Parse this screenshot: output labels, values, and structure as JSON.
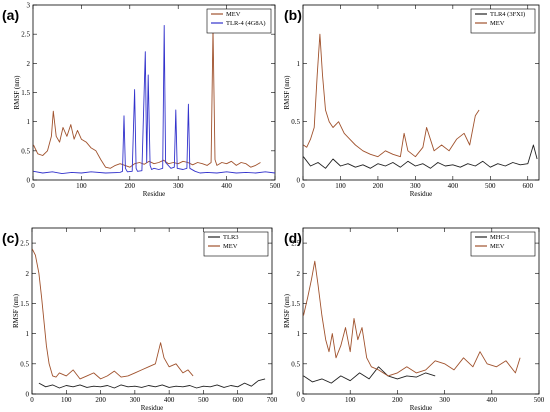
{
  "chart_data": [
    {
      "panel": "(a)",
      "type": "line",
      "xlabel": "Residue",
      "ylabel": "RMSF (nm)",
      "xlim": [
        0,
        500
      ],
      "ylim": [
        0,
        3
      ],
      "xticks": [
        0,
        100,
        200,
        300,
        400,
        500
      ],
      "yticks": [
        0,
        0.5,
        1,
        1.5,
        2,
        2.5,
        3
      ],
      "ytick_labels": [
        "0",
        "0.5",
        "1",
        "1.5",
        "2",
        "2.5",
        "3"
      ],
      "legend": {
        "position": "top-right"
      },
      "series": [
        {
          "name": "MEV",
          "color": "#a0522d",
          "x": [
            1,
            10,
            20,
            30,
            38,
            42,
            48,
            55,
            62,
            70,
            78,
            85,
            92,
            100,
            110,
            120,
            130,
            140,
            150,
            160,
            170,
            180,
            190,
            200,
            210,
            220,
            230,
            240,
            250,
            260,
            270,
            280,
            290,
            300,
            310,
            320,
            330,
            340,
            350,
            360,
            368,
            372,
            376,
            380,
            390,
            400,
            410,
            420,
            430,
            440,
            450,
            460,
            470
          ],
          "y": [
            0.6,
            0.45,
            0.42,
            0.5,
            0.75,
            1.18,
            0.75,
            0.65,
            0.9,
            0.75,
            0.95,
            0.7,
            0.85,
            0.7,
            0.65,
            0.55,
            0.5,
            0.35,
            0.22,
            0.2,
            0.25,
            0.28,
            0.25,
            0.22,
            0.28,
            0.3,
            0.27,
            0.32,
            0.28,
            0.3,
            0.34,
            0.28,
            0.3,
            0.28,
            0.32,
            0.3,
            0.26,
            0.3,
            0.28,
            0.25,
            0.3,
            2.6,
            0.35,
            0.25,
            0.3,
            0.28,
            0.32,
            0.25,
            0.3,
            0.28,
            0.22,
            0.25,
            0.3
          ]
        },
        {
          "name": "TLR-4 (4G8A)",
          "color": "#3333cc",
          "x": [
            1,
            20,
            40,
            60,
            80,
            100,
            120,
            150,
            180,
            185,
            188,
            191,
            195,
            205,
            210,
            213,
            216,
            225,
            232,
            235,
            238,
            242,
            245,
            250,
            260,
            268,
            271,
            274,
            285,
            292,
            295,
            298,
            310,
            318,
            321,
            324,
            335,
            345,
            360,
            380,
            400,
            420,
            440,
            460,
            480,
            500
          ],
          "y": [
            0.15,
            0.12,
            0.14,
            0.11,
            0.13,
            0.12,
            0.14,
            0.12,
            0.13,
            0.15,
            1.1,
            0.2,
            0.14,
            0.15,
            1.55,
            0.2,
            0.15,
            0.16,
            2.2,
            0.3,
            1.8,
            0.25,
            0.18,
            0.2,
            0.18,
            0.2,
            2.65,
            0.3,
            0.2,
            0.22,
            1.2,
            0.2,
            0.18,
            0.2,
            1.3,
            0.2,
            0.15,
            0.12,
            0.13,
            0.12,
            0.14,
            0.12,
            0.13,
            0.12,
            0.14,
            0.12
          ]
        }
      ]
    },
    {
      "panel": "(b)",
      "type": "line",
      "xlabel": "Residue",
      "ylabel": "RMSF (nm)",
      "xlim": [
        0,
        630
      ],
      "ylim": [
        0,
        1.5
      ],
      "xticks": [
        0,
        100,
        200,
        300,
        400,
        500,
        600
      ],
      "yticks": [
        0,
        0.5,
        1
      ],
      "ytick_labels": [
        "0",
        "0.5",
        "1"
      ],
      "legend": {
        "position": "top-right"
      },
      "series": [
        {
          "name": "TLR4 (3FXI)",
          "color": "#222222",
          "x": [
            1,
            20,
            40,
            60,
            80,
            100,
            120,
            140,
            160,
            180,
            200,
            220,
            240,
            260,
            280,
            300,
            320,
            340,
            360,
            380,
            400,
            420,
            440,
            460,
            480,
            500,
            520,
            540,
            560,
            580,
            600,
            615,
            625
          ],
          "y": [
            0.2,
            0.12,
            0.15,
            0.1,
            0.18,
            0.12,
            0.14,
            0.11,
            0.13,
            0.1,
            0.14,
            0.12,
            0.15,
            0.11,
            0.16,
            0.12,
            0.14,
            0.1,
            0.15,
            0.12,
            0.13,
            0.11,
            0.14,
            0.12,
            0.16,
            0.11,
            0.14,
            0.12,
            0.15,
            0.13,
            0.14,
            0.3,
            0.18
          ]
        },
        {
          "name": "MEV",
          "color": "#a0522d",
          "x": [
            1,
            10,
            20,
            30,
            38,
            45,
            52,
            60,
            70,
            80,
            95,
            110,
            125,
            140,
            160,
            180,
            200,
            220,
            240,
            260,
            270,
            280,
            300,
            320,
            330,
            350,
            370,
            390,
            410,
            430,
            445,
            460,
            470
          ],
          "y": [
            0.3,
            0.28,
            0.35,
            0.45,
            0.9,
            1.25,
            0.9,
            0.6,
            0.5,
            0.45,
            0.5,
            0.4,
            0.35,
            0.3,
            0.25,
            0.22,
            0.2,
            0.25,
            0.22,
            0.2,
            0.4,
            0.25,
            0.2,
            0.28,
            0.45,
            0.25,
            0.3,
            0.25,
            0.35,
            0.4,
            0.3,
            0.55,
            0.6
          ]
        }
      ]
    },
    {
      "panel": "(c)",
      "type": "line",
      "xlabel": "Residue",
      "ylabel": "RMSF (nm)",
      "xlim": [
        0,
        700
      ],
      "ylim": [
        0,
        2.75
      ],
      "xticks": [
        0,
        100,
        200,
        300,
        400,
        500,
        600,
        700
      ],
      "yticks": [
        0,
        0.5,
        1,
        1.5,
        2,
        2.5
      ],
      "ytick_labels": [
        "0",
        "0.5",
        "1",
        "1.5",
        "2",
        "2.5"
      ],
      "legend": {
        "position": "top-right"
      },
      "series": [
        {
          "name": "TLR3",
          "color": "#222222",
          "x": [
            20,
            40,
            60,
            80,
            100,
            120,
            140,
            160,
            180,
            200,
            220,
            240,
            260,
            280,
            300,
            320,
            340,
            360,
            380,
            400,
            420,
            440,
            460,
            480,
            500,
            520,
            540,
            560,
            580,
            600,
            620,
            640,
            660,
            680
          ],
          "y": [
            0.18,
            0.12,
            0.15,
            0.1,
            0.14,
            0.12,
            0.15,
            0.11,
            0.13,
            0.12,
            0.14,
            0.1,
            0.15,
            0.12,
            0.13,
            0.11,
            0.14,
            0.12,
            0.15,
            0.11,
            0.13,
            0.12,
            0.14,
            0.1,
            0.13,
            0.12,
            0.15,
            0.11,
            0.14,
            0.12,
            0.18,
            0.13,
            0.22,
            0.25
          ]
        },
        {
          "name": "MEV",
          "color": "#a0522d",
          "x": [
            1,
            10,
            20,
            28,
            35,
            42,
            50,
            60,
            70,
            80,
            100,
            120,
            140,
            160,
            180,
            200,
            220,
            240,
            260,
            280,
            300,
            320,
            340,
            360,
            375,
            385,
            400,
            420,
            440,
            455,
            470
          ],
          "y": [
            2.4,
            2.3,
            2.0,
            1.6,
            1.2,
            0.8,
            0.5,
            0.3,
            0.28,
            0.35,
            0.3,
            0.4,
            0.25,
            0.3,
            0.35,
            0.25,
            0.3,
            0.38,
            0.28,
            0.3,
            0.35,
            0.4,
            0.45,
            0.5,
            0.85,
            0.6,
            0.45,
            0.5,
            0.35,
            0.4,
            0.3
          ]
        }
      ]
    },
    {
      "panel": "(d)",
      "type": "line",
      "xlabel": "Residue",
      "ylabel": "RMSF (nm)",
      "xlim": [
        0,
        500
      ],
      "ylim": [
        0,
        2.75
      ],
      "xticks": [
        0,
        100,
        200,
        300,
        400,
        500
      ],
      "yticks": [
        0,
        0.5,
        1,
        1.5,
        2,
        2.5
      ],
      "ytick_labels": [
        "0",
        "0.5",
        "1",
        "1.5",
        "2",
        "2.5"
      ],
      "legend": {
        "position": "top-right"
      },
      "series": [
        {
          "name": "MHC-I",
          "color": "#222222",
          "x": [
            1,
            20,
            40,
            60,
            80,
            100,
            120,
            140,
            160,
            180,
            200,
            220,
            240,
            260,
            280
          ],
          "y": [
            0.3,
            0.2,
            0.25,
            0.18,
            0.3,
            0.22,
            0.35,
            0.25,
            0.45,
            0.3,
            0.25,
            0.3,
            0.28,
            0.35,
            0.3
          ]
        },
        {
          "name": "MEV",
          "color": "#a0522d",
          "x": [
            1,
            10,
            18,
            25,
            32,
            40,
            48,
            55,
            62,
            70,
            80,
            90,
            100,
            108,
            116,
            125,
            135,
            145,
            160,
            180,
            200,
            220,
            240,
            260,
            280,
            300,
            320,
            340,
            360,
            375,
            390,
            410,
            430,
            450,
            460
          ],
          "y": [
            1.3,
            1.6,
            1.9,
            2.2,
            1.8,
            1.3,
            0.9,
            0.7,
            1.0,
            0.6,
            0.8,
            1.1,
            0.7,
            1.25,
            0.9,
            1.1,
            0.6,
            0.45,
            0.4,
            0.3,
            0.35,
            0.45,
            0.35,
            0.4,
            0.55,
            0.5,
            0.4,
            0.6,
            0.45,
            0.7,
            0.5,
            0.45,
            0.55,
            0.35,
            0.6
          ]
        }
      ]
    }
  ]
}
